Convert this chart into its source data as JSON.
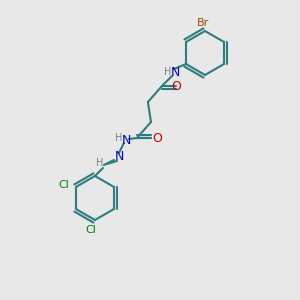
{
  "background_color": "#e8e8e8",
  "bond_color": "#2d7d7d",
  "bond_lw": 1.5,
  "atom_colors": {
    "N": "#0000cc",
    "O": "#cc0000",
    "Br": "#a05000",
    "Cl": "#008000",
    "C": "#2d7d7d",
    "H": "#808080"
  },
  "font_size": 8
}
